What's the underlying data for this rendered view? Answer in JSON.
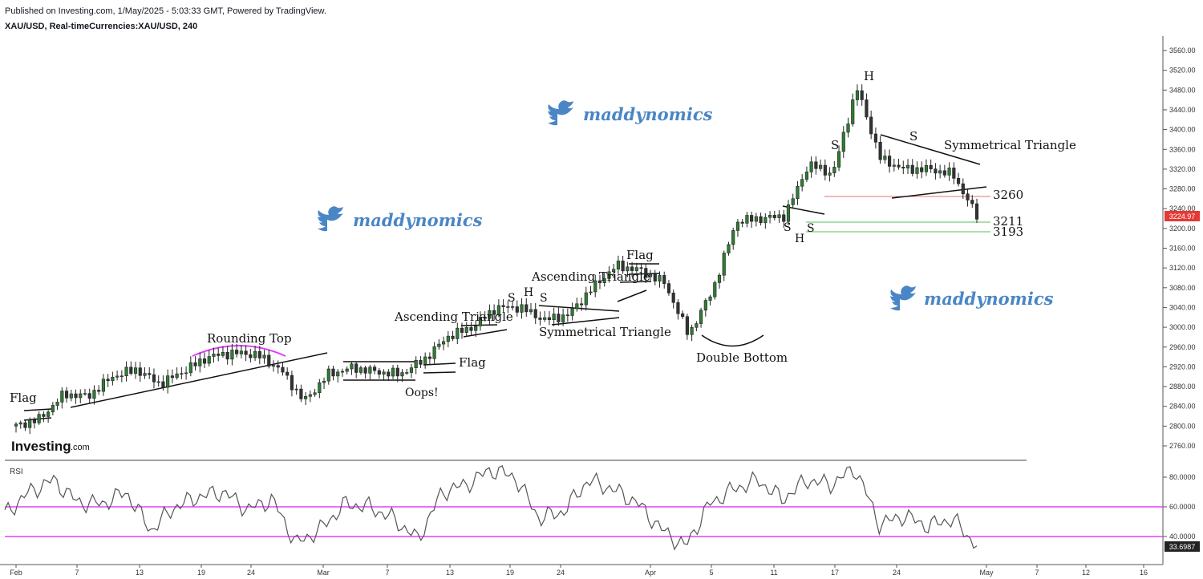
{
  "header": {
    "published": "Published on Investing.com, 1/May/2025 - 5:03:33 GMT, Powered by TradingView.",
    "symbol": "XAU/USD, Real-timeCurrencies:XAU/USD, 240"
  },
  "brand": {
    "main": "Investing",
    "suffix": ".com"
  },
  "watermark": "maddynomics",
  "rsi_label": "RSI",
  "colors": {
    "bull": "#2e7d32",
    "bear": "#333333",
    "rsi_band": "#e040fb",
    "resistance": "#e57373",
    "support": "#8fd68f",
    "price_tag": "#e53935",
    "watermark": "#4a86c5"
  },
  "chart_data": [
    {
      "type": "line",
      "title": "XAU/USD, Real-timeCurrencies:XAU/USD, 240",
      "xlabel": "",
      "ylabel": "",
      "x_ticks": [
        "Feb",
        "7",
        "13",
        "19",
        "24",
        "Mar",
        "7",
        "13",
        "19",
        "24",
        "Apr",
        "5",
        "11",
        "17",
        "24",
        "May",
        "7",
        "12",
        "16"
      ],
      "y_ticks": [
        "3560.00",
        "3520.00",
        "3480.00",
        "3440.00",
        "3400.00",
        "3360.00",
        "3320.00",
        "3280.00",
        "3240.00",
        "3200.00",
        "3160.00",
        "3120.00",
        "3080.00",
        "3040.00",
        "3000.00",
        "2960.00",
        "2920.00",
        "2880.00",
        "2840.00",
        "2800.00",
        "2760.00"
      ],
      "ylim": [
        2740,
        3575
      ],
      "grid": false,
      "series": [
        {
          "x": [
            "Feb 1",
            "Feb 3",
            "Feb 5",
            "Feb 7",
            "Feb 10",
            "Feb 12",
            "Feb 14",
            "Feb 17",
            "Feb 19",
            "Feb 21",
            "Feb 24",
            "Feb 26",
            "Feb 28",
            "Mar 3",
            "Mar 5",
            "Mar 7",
            "Mar 10",
            "Mar 12",
            "Mar 14",
            "Mar 17",
            "Mar 19",
            "Mar 21",
            "Mar 24",
            "Mar 26",
            "Mar 28",
            "Apr 1",
            "Apr 3",
            "Apr 5",
            "Apr 7",
            "Apr 9",
            "Apr 11",
            "Apr 13",
            "Apr 15",
            "Apr 17",
            "Apr 19",
            "Apr 21",
            "Apr 23",
            "Apr 25",
            "Apr 27",
            "Apr 29",
            "May 1"
          ],
          "values": [
            2800,
            2815,
            2865,
            2860,
            2900,
            2915,
            2885,
            2912,
            2940,
            2948,
            2945,
            2915,
            2850,
            2905,
            2918,
            2910,
            2905,
            2935,
            2982,
            3000,
            3040,
            3040,
            3015,
            3025,
            3080,
            3125,
            3115,
            3090,
            2985,
            3075,
            3215,
            3220,
            3225,
            3330,
            3310,
            3485,
            3340,
            3320,
            3320,
            3310,
            3225
          ]
        }
      ],
      "last_price": "3224.97",
      "levels": [
        "3260",
        "3211",
        "3193"
      ],
      "annotations": [
        "Flag",
        "Rounding Top",
        "Oops!",
        "Flag",
        "Ascending Triangle",
        "S",
        "H",
        "S",
        "Symmetrical Triangle",
        "Ascending Triangle",
        "Flag",
        "Double Bottom",
        "S",
        "H",
        "S",
        "S",
        "H",
        "S",
        "Symmetrical Triangle"
      ]
    },
    {
      "type": "line",
      "title": "RSI",
      "y_ticks": [
        "80.0000",
        "60.0000",
        "40.0000"
      ],
      "ylim": [
        22,
        92
      ],
      "bands": [
        60,
        40
      ],
      "series": [
        {
          "x": [
            "Feb 1",
            "Feb 3",
            "Feb 5",
            "Feb 7",
            "Feb 10",
            "Feb 12",
            "Feb 14",
            "Feb 17",
            "Feb 19",
            "Feb 21",
            "Feb 24",
            "Feb 26",
            "Feb 28",
            "Mar 3",
            "Mar 5",
            "Mar 7",
            "Mar 10",
            "Mar 12",
            "Mar 14",
            "Mar 17",
            "Mar 19",
            "Mar 21",
            "Mar 24",
            "Mar 26",
            "Mar 28",
            "Apr 1",
            "Apr 3",
            "Apr 5",
            "Apr 7",
            "Apr 9",
            "Apr 11",
            "Apr 13",
            "Apr 15",
            "Apr 17",
            "Apr 19",
            "Apr 21",
            "Apr 23",
            "Apr 25",
            "Apr 27",
            "Apr 29",
            "May 1"
          ],
          "values": [
            55,
            70,
            78,
            63,
            62,
            70,
            44,
            60,
            67,
            70,
            58,
            65,
            35,
            45,
            62,
            60,
            52,
            38,
            70,
            75,
            85,
            80,
            52,
            57,
            78,
            72,
            63,
            45,
            33,
            62,
            72,
            78,
            65,
            78,
            75,
            86,
            48,
            54,
            47,
            52,
            33.6987
          ]
        }
      ],
      "last_value": "33.6987"
    }
  ]
}
